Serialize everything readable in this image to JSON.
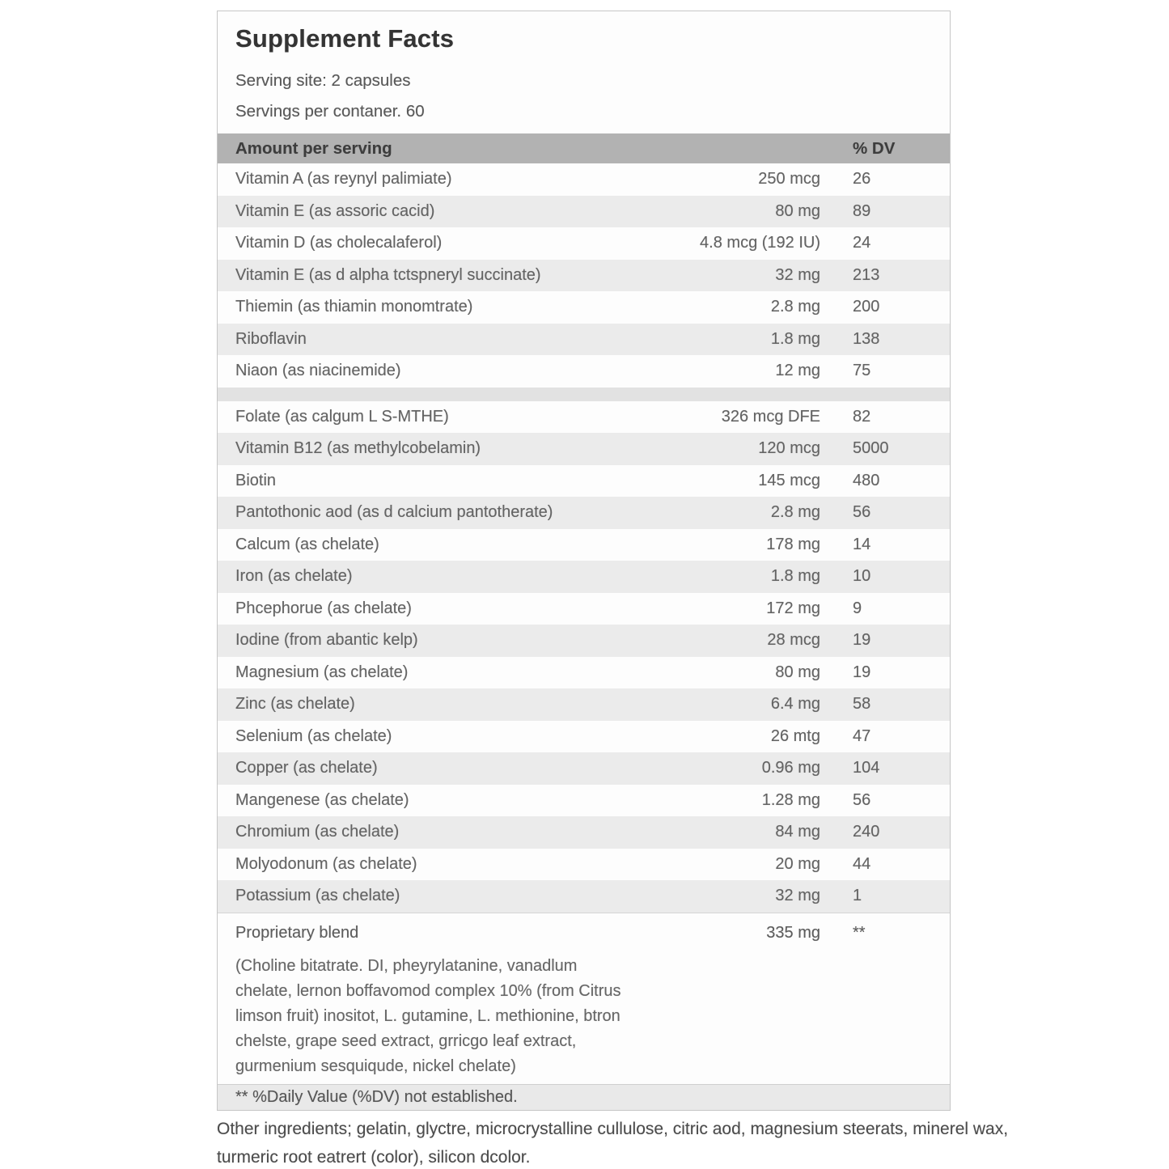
{
  "label": {
    "title": "Supplement Facts",
    "serving_size": "Serving site: 2 capsules",
    "servings_per_container": "Servings per contaner. 60",
    "header": {
      "amount_label": "Amount per serving",
      "dv_label": "% DV"
    },
    "rows_group1": [
      {
        "name": "Vitamin A (as reynyl palimiate)",
        "amount": "250 mcg",
        "dv": "26"
      },
      {
        "name": "Vitamin E (as assoric cacid)",
        "amount": "80 mg",
        "dv": "89"
      },
      {
        "name": "Vitamin D (as cholecalaferol)",
        "amount": "4.8 mcg (192 IU)",
        "dv": "24"
      },
      {
        "name": "Vitamin E (as d alpha tctspneryl succinate)",
        "amount": "32 mg",
        "dv": "213"
      },
      {
        "name": "Thiemin (as thiamin monomtrate)",
        "amount": "2.8 mg",
        "dv": "200"
      },
      {
        "name": "Riboflavin",
        "amount": "1.8 mg",
        "dv": "138"
      },
      {
        "name": "Niaon (as niacinemide)",
        "amount": "12 mg",
        "dv": "75"
      }
    ],
    "rows_group2": [
      {
        "name": "Folate (as calgum L S-MTHE)",
        "amount": "326 mcg DFE",
        "dv": "82"
      },
      {
        "name": "Vitamin B12 (as methylcobelamin)",
        "amount": "120 mcg",
        "dv": "5000"
      },
      {
        "name": "Biotin",
        "amount": "145 mcg",
        "dv": "480"
      },
      {
        "name": "Pantothonic aod (as d calcium pantotherate)",
        "amount": "2.8 mg",
        "dv": "56"
      },
      {
        "name": "Calcum (as chelate)",
        "amount": "178 mg",
        "dv": "14"
      },
      {
        "name": "Iron (as chelate)",
        "amount": "1.8 mg",
        "dv": "10"
      },
      {
        "name": "Phcephorue (as chelate)",
        "amount": "172 mg",
        "dv": "9"
      },
      {
        "name": "Iodine (from abantic kelp)",
        "amount": "28 mcg",
        "dv": "19"
      },
      {
        "name": "Magnesium (as chelate)",
        "amount": "80 mg",
        "dv": "19"
      },
      {
        "name": "Zinc (as chelate)",
        "amount": "6.4 mg",
        "dv": "58"
      },
      {
        "name": "Selenium (as chelate)",
        "amount": "26 mtg",
        "dv": "47"
      },
      {
        "name": "Copper (as chelate)",
        "amount": "0.96 mg",
        "dv": "104"
      },
      {
        "name": "Mangenese (as chelate)",
        "amount": "1.28 mg",
        "dv": "56"
      },
      {
        "name": "Chromium (as chelate)",
        "amount": "84 mg",
        "dv": "240"
      },
      {
        "name": "Molyodonum (as chelate)",
        "amount": "20 mg",
        "dv": "44"
      },
      {
        "name": "Potassium (as chelate)",
        "amount": "32 mg",
        "dv": "1"
      }
    ],
    "proprietary": {
      "name": "Proprietary blend",
      "amount": "335 mg",
      "dv": "**",
      "desc_lines": [
        "(Choline bitatrate. DI, pheyrylatanine, vanadlum",
        "chelate, lernon boffavomod complex 10% (from Citrus",
        "limson fruit) inositot, L. gutamine, L. methionine, btron",
        "chelste, grape seed extract, grricgo leaf extract,",
        "gurmenium sesquiqude, nickel chelate)"
      ]
    },
    "footnote": "** %Daily Value (%DV) not established.",
    "other_ingredients_lines": [
      "Other ingredients; gelatin, glyctre, microcrystalline cullulose, citric aod, magnesium steerats, minerel wax,",
      "turmeric root eatrert (color), silicon dcolor."
    ]
  },
  "colors": {
    "header_bar": "#b2b2b2",
    "row_stripe": "#ebebeb",
    "separator": "#e2e2e2",
    "footnote_bg": "#e9e9e9",
    "panel_border": "#c6c6c6",
    "text_dark": "#343434",
    "text_body": "#616161"
  }
}
